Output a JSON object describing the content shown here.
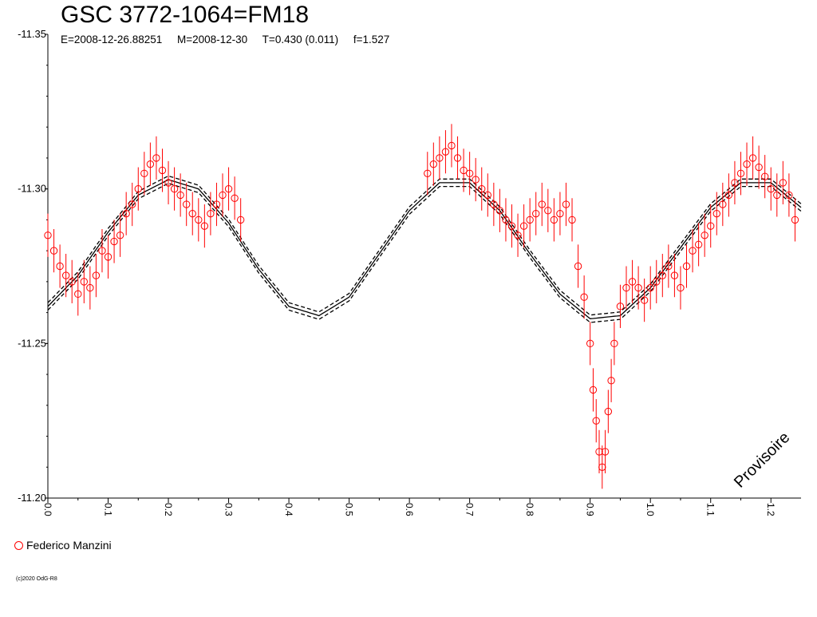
{
  "header": {
    "title": "GSC 3772-1064=FM18",
    "subtitle": "E=2008-12-26.88251     M=2008-12-30     T=0.430 (0.011)     f=1.527"
  },
  "legend": {
    "label": "Federico Manzini",
    "color": "#ff0000"
  },
  "watermark": "Provisoire",
  "copyright": "(c)2020 OdG-R8",
  "chart_data": {
    "type": "scatter",
    "title": "GSC 3772-1064=FM18",
    "xlabel": "",
    "ylabel": "",
    "xlim": [
      0.0,
      1.25
    ],
    "ylim": [
      -11.35,
      -11.2
    ],
    "y_axis_inverted": true,
    "x_ticks": [
      "0.0",
      "0.1",
      "0.2",
      "0.3",
      "0.4",
      "0.5",
      "0.6",
      "0.7",
      "0.8",
      "0.9",
      "1.0",
      "1.1",
      "1.2"
    ],
    "y_ticks": [
      "-11.35",
      "-11.30",
      "-11.25",
      "-11.20"
    ],
    "series": [
      {
        "name": "Federico Manzini",
        "color": "#ff0000",
        "marker": "open-circle",
        "points": [
          [
            0.0,
            -11.285
          ],
          [
            0.01,
            -11.28
          ],
          [
            0.02,
            -11.275
          ],
          [
            0.03,
            -11.272
          ],
          [
            0.04,
            -11.27
          ],
          [
            0.05,
            -11.266
          ],
          [
            0.06,
            -11.27
          ],
          [
            0.07,
            -11.268
          ],
          [
            0.08,
            -11.272
          ],
          [
            0.09,
            -11.28
          ],
          [
            0.1,
            -11.278
          ],
          [
            0.11,
            -11.283
          ],
          [
            0.12,
            -11.285
          ],
          [
            0.13,
            -11.292
          ],
          [
            0.14,
            -11.295
          ],
          [
            0.15,
            -11.3
          ],
          [
            0.16,
            -11.305
          ],
          [
            0.17,
            -11.308
          ],
          [
            0.18,
            -11.31
          ],
          [
            0.19,
            -11.306
          ],
          [
            0.2,
            -11.302
          ],
          [
            0.21,
            -11.3
          ],
          [
            0.22,
            -11.298
          ],
          [
            0.23,
            -11.295
          ],
          [
            0.24,
            -11.292
          ],
          [
            0.25,
            -11.29
          ],
          [
            0.26,
            -11.288
          ],
          [
            0.27,
            -11.292
          ],
          [
            0.28,
            -11.295
          ],
          [
            0.29,
            -11.298
          ],
          [
            0.3,
            -11.3
          ],
          [
            0.31,
            -11.297
          ],
          [
            0.32,
            -11.29
          ],
          [
            0.63,
            -11.305
          ],
          [
            0.64,
            -11.308
          ],
          [
            0.65,
            -11.31
          ],
          [
            0.66,
            -11.312
          ],
          [
            0.67,
            -11.314
          ],
          [
            0.68,
            -11.31
          ],
          [
            0.69,
            -11.306
          ],
          [
            0.7,
            -11.305
          ],
          [
            0.71,
            -11.303
          ],
          [
            0.72,
            -11.3
          ],
          [
            0.73,
            -11.298
          ],
          [
            0.74,
            -11.295
          ],
          [
            0.75,
            -11.293
          ],
          [
            0.76,
            -11.29
          ],
          [
            0.77,
            -11.288
          ],
          [
            0.78,
            -11.285
          ],
          [
            0.79,
            -11.288
          ],
          [
            0.8,
            -11.29
          ],
          [
            0.81,
            -11.292
          ],
          [
            0.82,
            -11.295
          ],
          [
            0.83,
            -11.293
          ],
          [
            0.84,
            -11.29
          ],
          [
            0.85,
            -11.292
          ],
          [
            0.86,
            -11.295
          ],
          [
            0.87,
            -11.29
          ],
          [
            0.88,
            -11.275
          ],
          [
            0.89,
            -11.265
          ],
          [
            0.9,
            -11.25
          ],
          [
            0.905,
            -11.235
          ],
          [
            0.91,
            -11.225
          ],
          [
            0.915,
            -11.215
          ],
          [
            0.92,
            -11.21
          ],
          [
            0.925,
            -11.215
          ],
          [
            0.93,
            -11.228
          ],
          [
            0.935,
            -11.238
          ],
          [
            0.94,
            -11.25
          ],
          [
            0.95,
            -11.262
          ],
          [
            0.96,
            -11.268
          ],
          [
            0.97,
            -11.27
          ],
          [
            0.98,
            -11.268
          ],
          [
            0.99,
            -11.264
          ],
          [
            1.0,
            -11.268
          ],
          [
            1.01,
            -11.27
          ],
          [
            1.02,
            -11.272
          ],
          [
            1.03,
            -11.275
          ],
          [
            1.04,
            -11.272
          ],
          [
            1.05,
            -11.268
          ],
          [
            1.06,
            -11.275
          ],
          [
            1.07,
            -11.28
          ],
          [
            1.08,
            -11.282
          ],
          [
            1.09,
            -11.285
          ],
          [
            1.1,
            -11.288
          ],
          [
            1.11,
            -11.292
          ],
          [
            1.12,
            -11.295
          ],
          [
            1.13,
            -11.298
          ],
          [
            1.14,
            -11.302
          ],
          [
            1.15,
            -11.305
          ],
          [
            1.16,
            -11.308
          ],
          [
            1.17,
            -11.31
          ],
          [
            1.18,
            -11.307
          ],
          [
            1.19,
            -11.304
          ],
          [
            1.2,
            -11.3
          ],
          [
            1.21,
            -11.298
          ],
          [
            1.22,
            -11.302
          ],
          [
            1.23,
            -11.298
          ],
          [
            1.24,
            -11.29
          ]
        ],
        "error": 0.007
      },
      {
        "name": "",
        "color": "#000000",
        "marker": "none",
        "line": "fit",
        "x": [
          0.0,
          0.05,
          0.1,
          0.15,
          0.2,
          0.25,
          0.3,
          0.35,
          0.4,
          0.45,
          0.5,
          0.55,
          0.6,
          0.65,
          0.7,
          0.75,
          0.8,
          0.85,
          0.9,
          0.95,
          1.0,
          1.05,
          1.1,
          1.15,
          1.2,
          1.25
        ],
        "y": [
          -11.262,
          -11.272,
          -11.286,
          -11.298,
          -11.303,
          -11.3,
          -11.289,
          -11.274,
          -11.262,
          -11.259,
          -11.265,
          -11.279,
          -11.293,
          -11.302,
          -11.302,
          -11.293,
          -11.279,
          -11.266,
          -11.258,
          -11.259,
          -11.268,
          -11.281,
          -11.294,
          -11.302,
          -11.302,
          -11.294
        ]
      }
    ]
  }
}
